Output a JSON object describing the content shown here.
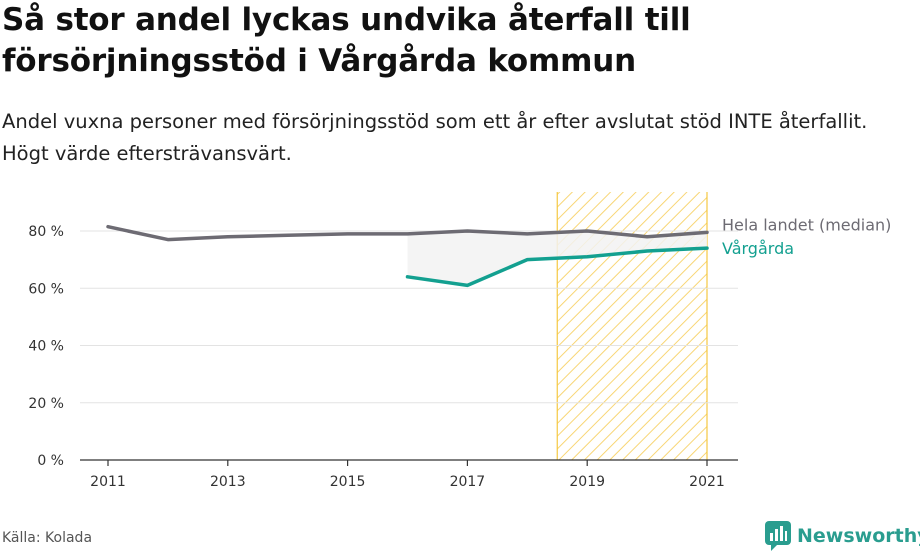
{
  "header": {
    "title": "Så stor andel lyckas undvika återfall till försörjningsstöd i Vårgårda kommun",
    "subtitle": "Andel vuxna personer med försörjningsstöd som ett år efter avslutat stöd INTE återfallit. Högt värde eftersträvansvärt."
  },
  "footer": {
    "source": "Källa: Kolada",
    "brand": "Newsworthy"
  },
  "icons": {
    "brand_logo": "newsworthy-logo-icon"
  },
  "colors": {
    "national": "#6d6b73",
    "local": "#13a090",
    "highlight_border": "#f5c842",
    "highlight_hatch": "#f8d675",
    "gap_fill": "#f2f2f2"
  },
  "chart_data": {
    "type": "line",
    "title": "Så stor andel lyckas undvika återfall till försörjningsstöd i Vårgårda kommun",
    "subtitle": "Andel vuxna personer med försörjningsstöd som ett år efter avslutat stöd INTE återfallit. Högt värde eftersträvansvärt.",
    "x": [
      2011,
      2012,
      2013,
      2014,
      2015,
      2016,
      2017,
      2018,
      2019,
      2020,
      2021
    ],
    "xlim": [
      2011,
      2021
    ],
    "xticks": [
      2011,
      2013,
      2015,
      2017,
      2019,
      2021
    ],
    "xtick_labels": [
      "2011",
      "2013",
      "2015",
      "2017",
      "2019",
      "2021"
    ],
    "ylim": [
      0,
      80
    ],
    "yticks": [
      0,
      20,
      40,
      60,
      80
    ],
    "ytick_labels": [
      "0 %",
      "20 %",
      "40 %",
      "60 %",
      "80 %"
    ],
    "grid": true,
    "highlight_range": [
      2018.5,
      2021
    ],
    "series": [
      {
        "name": "Hela landet (median)",
        "values": [
          81.5,
          77,
          78,
          78.5,
          79,
          79,
          80,
          79,
          80,
          78,
          79.5
        ]
      },
      {
        "name": "Vårgårda",
        "values": [
          null,
          null,
          null,
          null,
          null,
          64,
          61,
          70,
          71,
          73,
          74
        ]
      }
    ]
  }
}
